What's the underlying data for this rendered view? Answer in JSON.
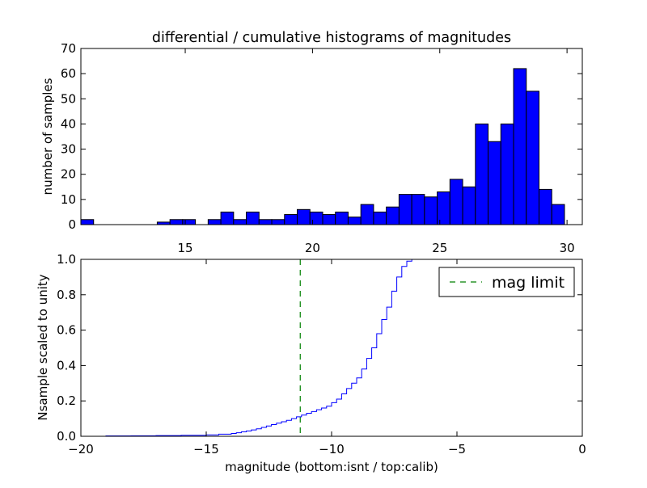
{
  "figure": {
    "background": "#ffffff"
  },
  "chart_data": [
    {
      "type": "bar",
      "subtype": "histogram",
      "title": "differential / cumulative histograms of magnitudes",
      "xlabel": "",
      "ylabel": "number of samples",
      "xaxis_position": "top",
      "xlim": [
        10.9,
        30.6
      ],
      "ylim": [
        0,
        70
      ],
      "xticks": [
        15,
        20,
        25,
        30
      ],
      "yticks": [
        0,
        10,
        20,
        30,
        40,
        50,
        60,
        70
      ],
      "bin_width": 0.5,
      "bin_starts": [
        10.9,
        11.4,
        11.9,
        12.4,
        12.9,
        13.4,
        13.9,
        14.4,
        14.9,
        15.4,
        15.9,
        16.4,
        16.9,
        17.4,
        17.9,
        18.4,
        18.9,
        19.4,
        19.9,
        20.4,
        20.9,
        21.4,
        21.9,
        22.4,
        22.9,
        23.4,
        23.9,
        24.4,
        24.9,
        25.4,
        25.9,
        26.4,
        26.9,
        27.4,
        27.9,
        28.4,
        28.9,
        29.4
      ],
      "values": [
        2,
        0,
        0,
        0,
        0,
        0,
        1,
        2,
        2,
        0,
        2,
        5,
        2,
        5,
        2,
        2,
        4,
        6,
        5,
        4,
        5,
        3,
        8,
        5,
        7,
        12,
        12,
        11,
        13,
        18,
        15,
        40,
        33,
        40,
        62,
        53,
        14,
        8
      ],
      "bar_color": "#0000ff",
      "edge_color": "#000000",
      "grid": false
    },
    {
      "type": "line",
      "subtype": "cumulative-step",
      "title": "",
      "xlabel": "magnitude (bottom:isnt / top:calib)",
      "ylabel": "Nsample scaled to unity",
      "xlim": [
        -20,
        0
      ],
      "ylim": [
        0,
        1
      ],
      "xticks": [
        -20,
        -15,
        -10,
        -5,
        0
      ],
      "xtick_labels": [
        "−20",
        "−15",
        "−10",
        "−5",
        "0"
      ],
      "yticks": [
        0.0,
        0.2,
        0.4,
        0.6,
        0.8,
        1.0
      ],
      "ytick_labels": [
        "0.0",
        "0.2",
        "0.4",
        "0.6",
        "0.8",
        "1.0"
      ],
      "series": [
        {
          "name": "",
          "color": "#0000ff",
          "x": [
            -20,
            -19.0,
            -18.0,
            -17.0,
            -16.0,
            -15.0,
            -14.5,
            -14.0,
            -13.8,
            -13.6,
            -13.4,
            -13.2,
            -13.0,
            -12.8,
            -12.6,
            -12.4,
            -12.2,
            -12.0,
            -11.8,
            -11.6,
            -11.4,
            -11.2,
            -11.0,
            -10.8,
            -10.6,
            -10.4,
            -10.2,
            -10.0,
            -9.8,
            -9.6,
            -9.4,
            -9.2,
            -9.0,
            -8.8,
            -8.6,
            -8.4,
            -8.2,
            -8.0,
            -7.8,
            -7.6,
            -7.4,
            -7.2,
            -7.0,
            -6.8,
            0
          ],
          "y": [
            0.0,
            0.002,
            0.003,
            0.004,
            0.006,
            0.008,
            0.012,
            0.016,
            0.02,
            0.025,
            0.03,
            0.036,
            0.042,
            0.05,
            0.058,
            0.066,
            0.074,
            0.082,
            0.09,
            0.1,
            0.11,
            0.12,
            0.13,
            0.14,
            0.15,
            0.16,
            0.17,
            0.19,
            0.21,
            0.24,
            0.27,
            0.3,
            0.33,
            0.38,
            0.44,
            0.5,
            0.58,
            0.66,
            0.73,
            0.82,
            0.9,
            0.96,
            0.99,
            1.0,
            1.0
          ]
        }
      ],
      "reference_lines": [
        {
          "name": "mag limit",
          "x": -11.25,
          "color": "#008000",
          "style": "dashed"
        }
      ],
      "legend": {
        "position": "top-right",
        "entries": [
          "mag limit"
        ]
      },
      "grid": false
    }
  ]
}
